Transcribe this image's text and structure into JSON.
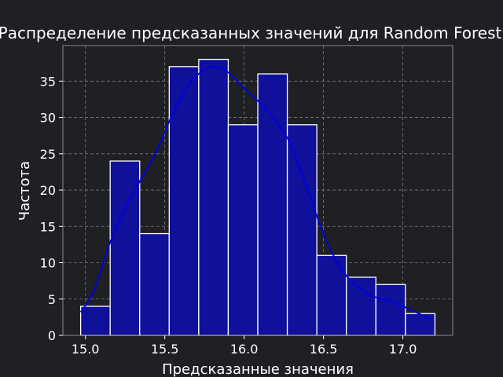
{
  "chart_data": {
    "type": "bar",
    "title": "Распределение предсказанных значений для Random Forest",
    "xlabel": "Предсказанные значения",
    "ylabel": "Частота",
    "bin_edges": [
      14.97,
      15.156,
      15.342,
      15.528,
      15.714,
      15.9,
      16.086,
      16.272,
      16.458,
      16.644,
      16.83,
      17.016,
      17.202
    ],
    "counts": [
      4,
      24,
      14,
      37,
      38,
      29,
      36,
      29,
      11,
      8,
      7,
      3
    ],
    "kde": {
      "x": [
        14.97,
        15.05,
        15.15,
        15.25,
        15.35,
        15.45,
        15.55,
        15.65,
        15.75,
        15.82,
        15.9,
        16.0,
        16.1,
        16.2,
        16.3,
        16.4,
        16.5,
        16.6,
        16.7,
        16.8,
        16.9,
        17.0,
        17.1,
        17.18
      ],
      "y": [
        3.2,
        6,
        12.5,
        17.5,
        21.5,
        25.5,
        30.5,
        34.5,
        36.6,
        37.0,
        36.2,
        34.0,
        32.0,
        29.5,
        26.0,
        20.0,
        14.0,
        9.5,
        7.0,
        5.5,
        4.8,
        4.0,
        3.0,
        2.2
      ]
    },
    "xticks": [
      "15.0",
      "15.5",
      "16.0",
      "16.5",
      "17.0"
    ],
    "xtick_values": [
      15.0,
      15.5,
      16.0,
      16.5,
      17.0
    ],
    "yticks": [
      "0",
      "5",
      "10",
      "15",
      "20",
      "25",
      "30",
      "35"
    ],
    "ytick_values": [
      0,
      5,
      10,
      15,
      20,
      25,
      30,
      35
    ],
    "xlim": [
      14.858,
      17.314
    ],
    "ylim": [
      0,
      39.9
    ],
    "grid": true,
    "bar_color": "#10109a",
    "bar_edge_color": "#ffffff",
    "kde_color": "#0000e0",
    "background_color": "#1f2024",
    "spine_color": "#8a8a8a",
    "grid_color": "#7a7a7a"
  }
}
